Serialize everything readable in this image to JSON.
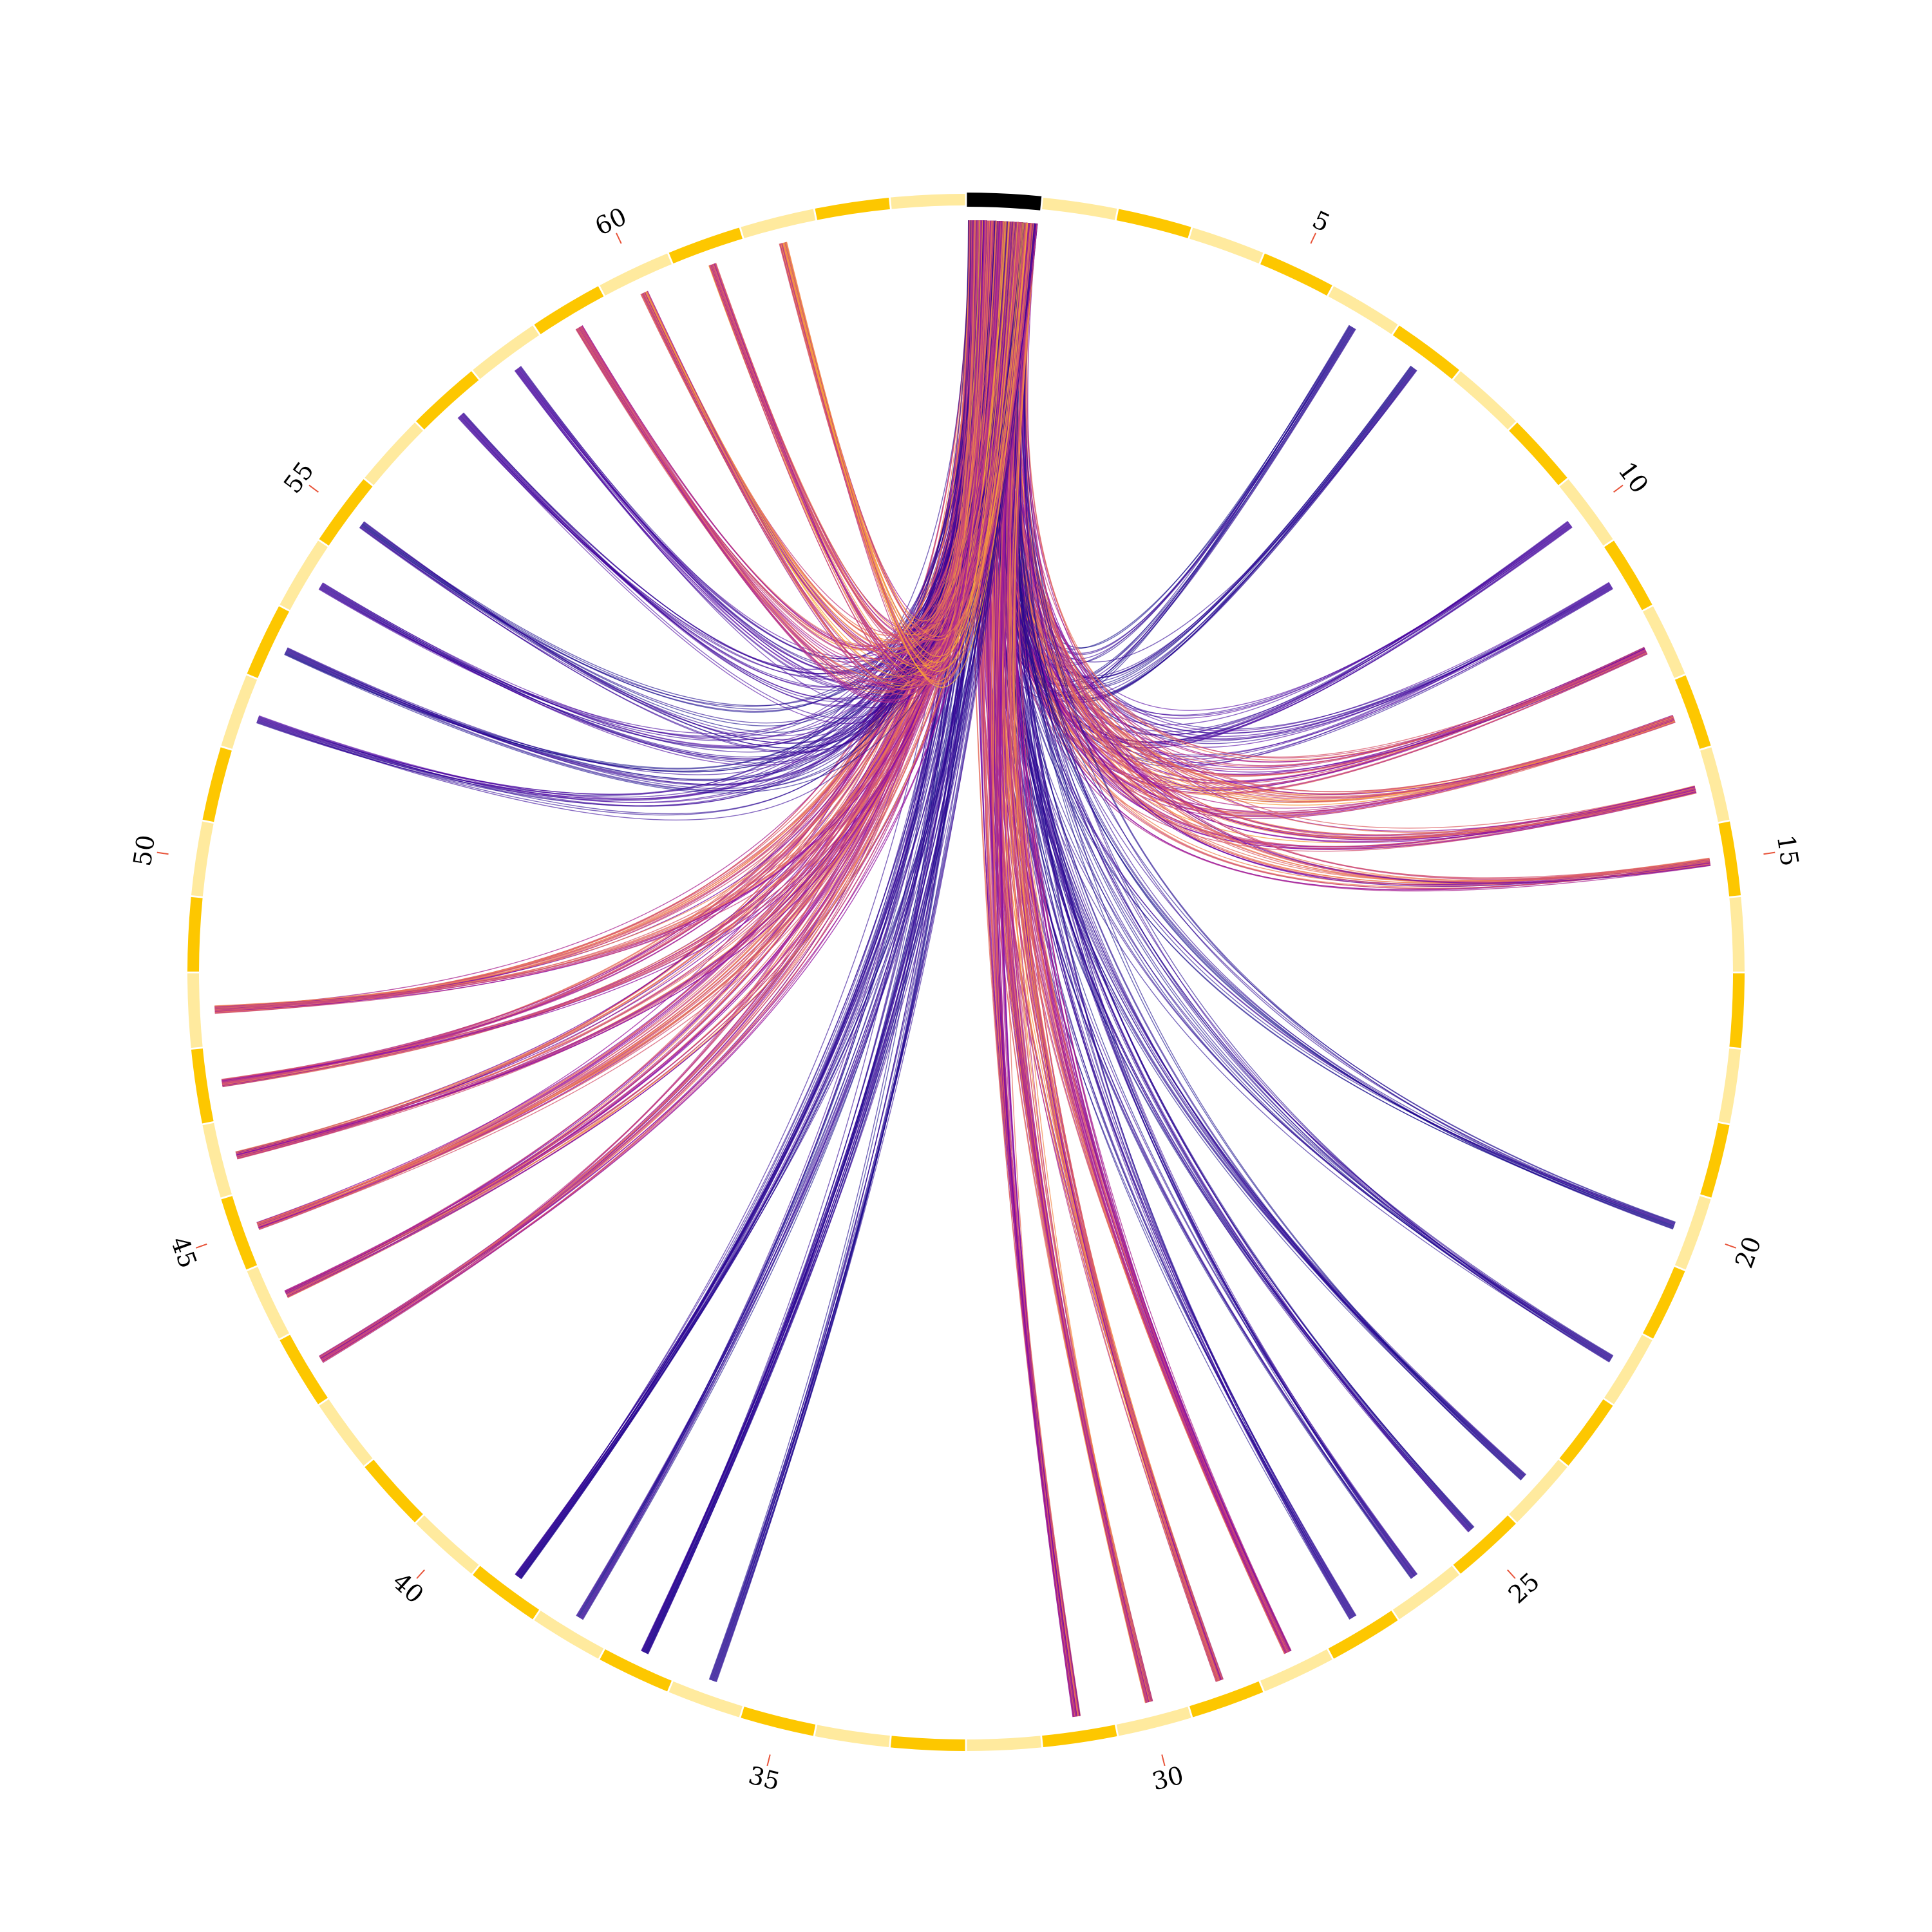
{
  "chart_data": {
    "type": "chord",
    "title": "",
    "segments": {
      "count": 64,
      "highlighted_index": 1,
      "highlight_color": "#000000",
      "colors_alternating": [
        "#ffea9e",
        "#fdc700"
      ]
    },
    "tick_labels": [
      "5",
      "10",
      "15",
      "20",
      "25",
      "30",
      "35",
      "40",
      "45",
      "50",
      "55",
      "60"
    ],
    "tick_positions": [
      5,
      10,
      15,
      20,
      25,
      30,
      35,
      40,
      45,
      50,
      55,
      60
    ],
    "colormap": "plasma",
    "links": [
      {
        "target": 6,
        "weight": 1,
        "intensity": 0.05
      },
      {
        "target": 7,
        "weight": 1,
        "intensity": 0.05
      },
      {
        "target": 10,
        "weight": 1,
        "intensity": 0.1
      },
      {
        "target": 11,
        "weight": 1,
        "intensity": 0.1
      },
      {
        "target": 12,
        "weight": 2,
        "intensity": 0.45
      },
      {
        "target": 13,
        "weight": 2,
        "intensity": 0.5
      },
      {
        "target": 14,
        "weight": 2,
        "intensity": 0.5
      },
      {
        "target": 15,
        "weight": 2,
        "intensity": 0.45
      },
      {
        "target": 20,
        "weight": 1,
        "intensity": 0.05
      },
      {
        "target": 22,
        "weight": 1,
        "intensity": 0.05
      },
      {
        "target": 24,
        "weight": 1,
        "intensity": 0.05
      },
      {
        "target": 25,
        "weight": 1,
        "intensity": 0.05
      },
      {
        "target": 26,
        "weight": 1,
        "intensity": 0.05
      },
      {
        "target": 27,
        "weight": 1,
        "intensity": 0.05
      },
      {
        "target": 28,
        "weight": 3,
        "intensity": 0.45
      },
      {
        "target": 29,
        "weight": 3,
        "intensity": 0.5
      },
      {
        "target": 30,
        "weight": 3,
        "intensity": 0.5
      },
      {
        "target": 31,
        "weight": 3,
        "intensity": 0.45
      },
      {
        "target": 36,
        "weight": 1,
        "intensity": 0.05
      },
      {
        "target": 37,
        "weight": 2,
        "intensity": 0.05
      },
      {
        "target": 38,
        "weight": 1,
        "intensity": 0.05
      },
      {
        "target": 39,
        "weight": 2,
        "intensity": 0.05
      },
      {
        "target": 43,
        "weight": 2,
        "intensity": 0.45
      },
      {
        "target": 44,
        "weight": 2,
        "intensity": 0.5
      },
      {
        "target": 45,
        "weight": 2,
        "intensity": 0.5
      },
      {
        "target": 46,
        "weight": 2,
        "intensity": 0.45
      },
      {
        "target": 47,
        "weight": 2,
        "intensity": 0.45
      },
      {
        "target": 48,
        "weight": 2,
        "intensity": 0.45
      },
      {
        "target": 52,
        "weight": 1,
        "intensity": 0.1
      },
      {
        "target": 53,
        "weight": 1,
        "intensity": 0.05
      },
      {
        "target": 54,
        "weight": 1,
        "intensity": 0.1
      },
      {
        "target": 55,
        "weight": 1,
        "intensity": 0.05
      },
      {
        "target": 57,
        "weight": 1,
        "intensity": 0.1
      },
      {
        "target": 58,
        "weight": 1,
        "intensity": 0.1
      },
      {
        "target": 59,
        "weight": 2,
        "intensity": 0.55
      },
      {
        "target": 60,
        "weight": 2,
        "intensity": 0.6
      },
      {
        "target": 61,
        "weight": 2,
        "intensity": 0.55
      },
      {
        "target": 62,
        "weight": 2,
        "intensity": 0.6
      }
    ]
  }
}
